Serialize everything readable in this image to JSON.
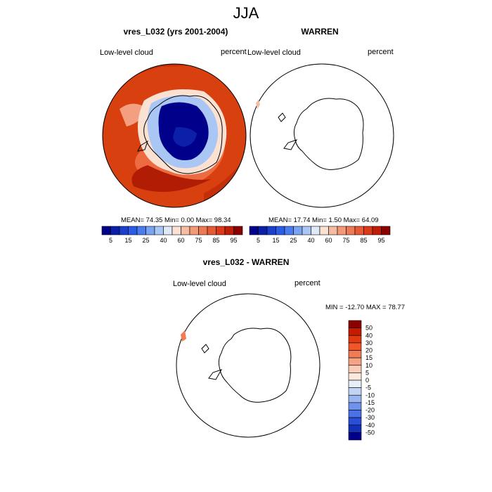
{
  "main_title": "JJA",
  "panels": [
    {
      "title": "vres_L032 (yrs 2001-2004)",
      "left_label": "Low-level cloud",
      "right_label": "percent",
      "stats": "MEAN=  74.35  Min=   0.00  Max=  98.34"
    },
    {
      "title": "WARREN",
      "left_label": "Low-level cloud",
      "right_label": "percent",
      "stats": "MEAN=  17.74  Min=   1.50  Max=  64.09"
    },
    {
      "title": "vres_L032 - WARREN",
      "left_label": "Low-level cloud",
      "right_label": "percent",
      "stats": "MIN = -12.70  MAX =  78.77"
    }
  ],
  "colorbar_main": {
    "colors": [
      "#00008b",
      "#0b1fa8",
      "#1a3fcc",
      "#2a5ce8",
      "#4a7cf0",
      "#7aa3f2",
      "#a9c6f4",
      "#dfe9f8",
      "#fbe1d2",
      "#f6bca1",
      "#f29a78",
      "#ee7a55",
      "#e85a33",
      "#dc3a18",
      "#c01e06",
      "#8b0000"
    ],
    "labels": [
      "5",
      "15",
      "25",
      "40",
      "60",
      "75",
      "85",
      "95"
    ]
  },
  "colorbar_diff": {
    "colors": [
      "#8b0000",
      "#c81a00",
      "#e23a10",
      "#f0562a",
      "#f27b55",
      "#f4a384",
      "#f8ccb8",
      "#fde8de",
      "#e6eef9",
      "#c2d4f4",
      "#98b5f0",
      "#6f93ec",
      "#4a72e6",
      "#2a4fd6",
      "#1330b8",
      "#00008b"
    ],
    "labels": [
      "50",
      "40",
      "30",
      "20",
      "15",
      "10",
      "5",
      "0",
      "-5",
      "-10",
      "-15",
      "-20",
      "-30",
      "-40",
      "-50"
    ]
  }
}
